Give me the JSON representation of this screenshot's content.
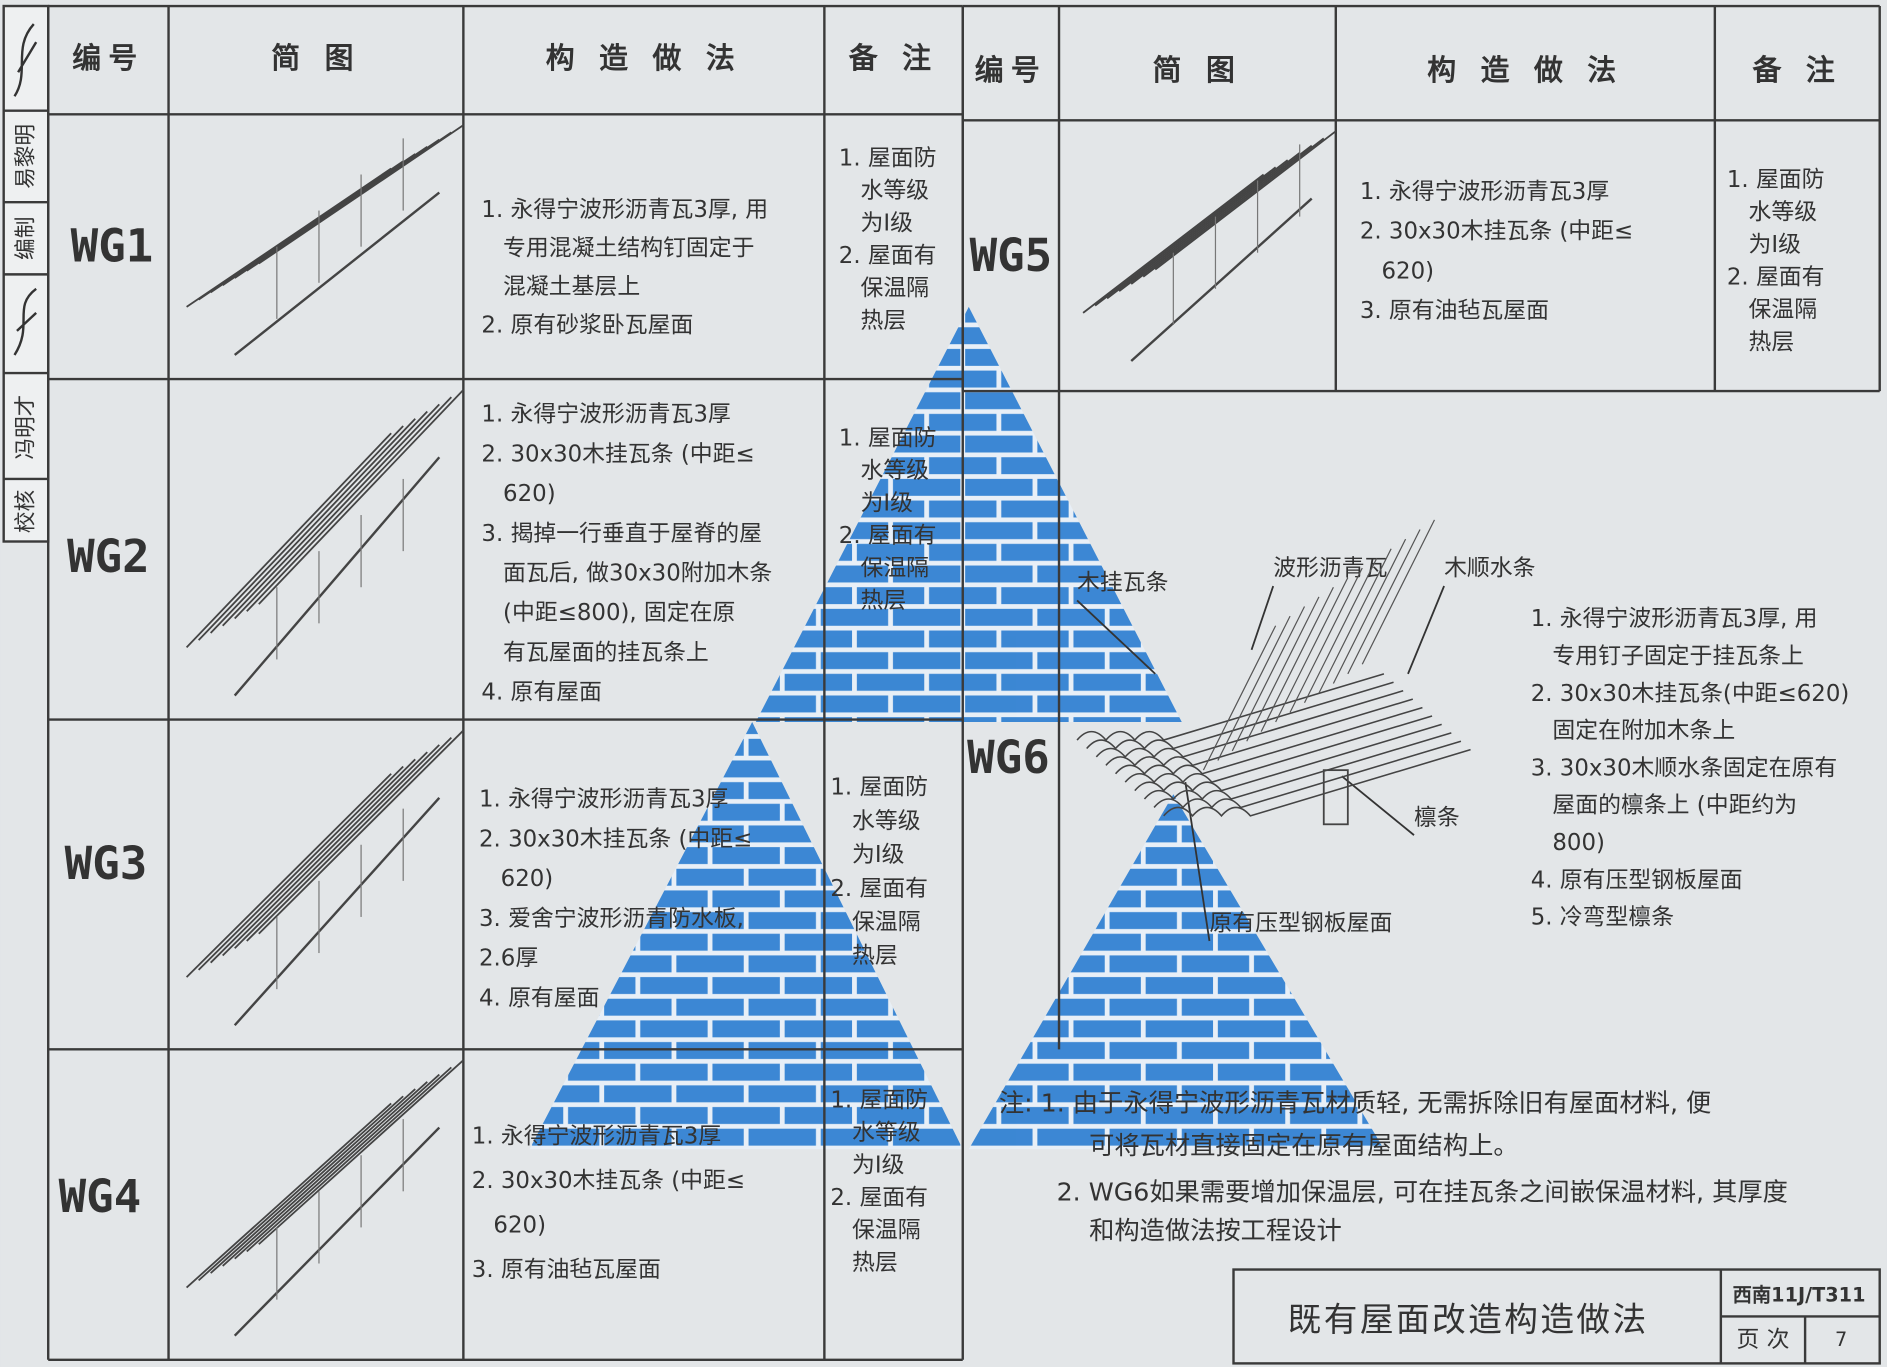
{
  "side_strip": [
    "校核",
    "冯明才",
    "编制",
    "易黎明"
  ],
  "left_table": {
    "header": [
      "编号",
      "简 图",
      "构 造 做 法",
      "备 注"
    ],
    "rows": [
      {
        "id": "WG1",
        "method": [
          "1. 永得宁波形沥青瓦3厚, 用",
          "专用混凝土结构钉固定于",
          "混凝土基层上",
          "2. 原有砂浆卧瓦屋面"
        ],
        "notes": [
          "1. 屋面防",
          "水等级",
          "为Ⅰ级",
          "2. 屋面有",
          "保温隔",
          "热层"
        ]
      },
      {
        "id": "WG2",
        "method": [
          "1. 永得宁波形沥青瓦3厚",
          "2.  30x30木挂瓦条 (中距≤",
          "620)",
          "3. 揭掉一行垂直于屋脊的屋",
          "面瓦后, 做30x30附加木条",
          "(中距≤800), 固定在原",
          "有瓦屋面的挂瓦条上",
          "4. 原有屋面"
        ],
        "notes": [
          "1. 屋面防",
          "水等级",
          "为Ⅰ级",
          "2. 屋面有",
          "保温隔",
          "热层"
        ]
      },
      {
        "id": "WG3",
        "method": [
          "1. 永得宁波形沥青瓦3厚",
          "2. 30x30木挂瓦条 (中距≤",
          "620)",
          "3. 爱舍宁波形沥青防水板,",
          "2.6厚",
          "4. 原有屋面"
        ],
        "notes": [
          "1. 屋面防",
          "水等级",
          "为Ⅰ级",
          "2. 屋面有",
          "保温隔",
          "热层"
        ]
      },
      {
        "id": "WG4",
        "method": [
          "1. 永得宁波形沥青瓦3厚",
          "2. 30x30木挂瓦条 (中距≤",
          "620)",
          "3. 原有油毡瓦屋面"
        ],
        "notes": [
          "1. 屋面防",
          "水等级",
          "为Ⅰ级",
          "2. 屋面有",
          "保温隔",
          "热层"
        ]
      }
    ]
  },
  "right_table": {
    "header": [
      "编号",
      "简 图",
      "构 造 做 法",
      "备 注"
    ],
    "rows": [
      {
        "id": "WG5",
        "method": [
          "1. 永得宁波形沥青瓦3厚",
          "2.  30x30木挂瓦条 (中距≤",
          "620)",
          "3. 原有油毡瓦屋面"
        ],
        "notes": [
          "1. 屋面防",
          "水等级",
          "为Ⅰ级",
          "2. 屋面有",
          "保温隔",
          "热层"
        ]
      }
    ]
  },
  "wg6": {
    "id": "WG6",
    "labels": [
      "木挂瓦条",
      "波形沥青瓦",
      "木顺水条",
      "檩条",
      "原有压型钢板屋面"
    ],
    "method": [
      "1. 永得宁波形沥青瓦3厚, 用",
      "专用钉子固定于挂瓦条上",
      "2. 30x30木挂瓦条(中距≤620)",
      "固定在附加木条上",
      "3. 30x30木顺水条固定在原有",
      "屋面的檩条上 (中距约为",
      "800)",
      "4. 原有压型钢板屋面",
      "5. 冷弯型檩条"
    ]
  },
  "notes": [
    "注: 1. 由于永得宁波形沥青瓦材质轻, 无需拆除旧有屋面材料, 便",
    "可将瓦材直接固定在原有屋面结构上。",
    "2. WG6如果需要增加保温层, 可在挂瓦条之间嵌保温材料, 其厚度",
    "和构造做法按工程设计"
  ],
  "title_block": {
    "title": "既有屋面改造构造做法",
    "code": "西南11J/T311",
    "page_label": "页 次",
    "page": "7"
  }
}
